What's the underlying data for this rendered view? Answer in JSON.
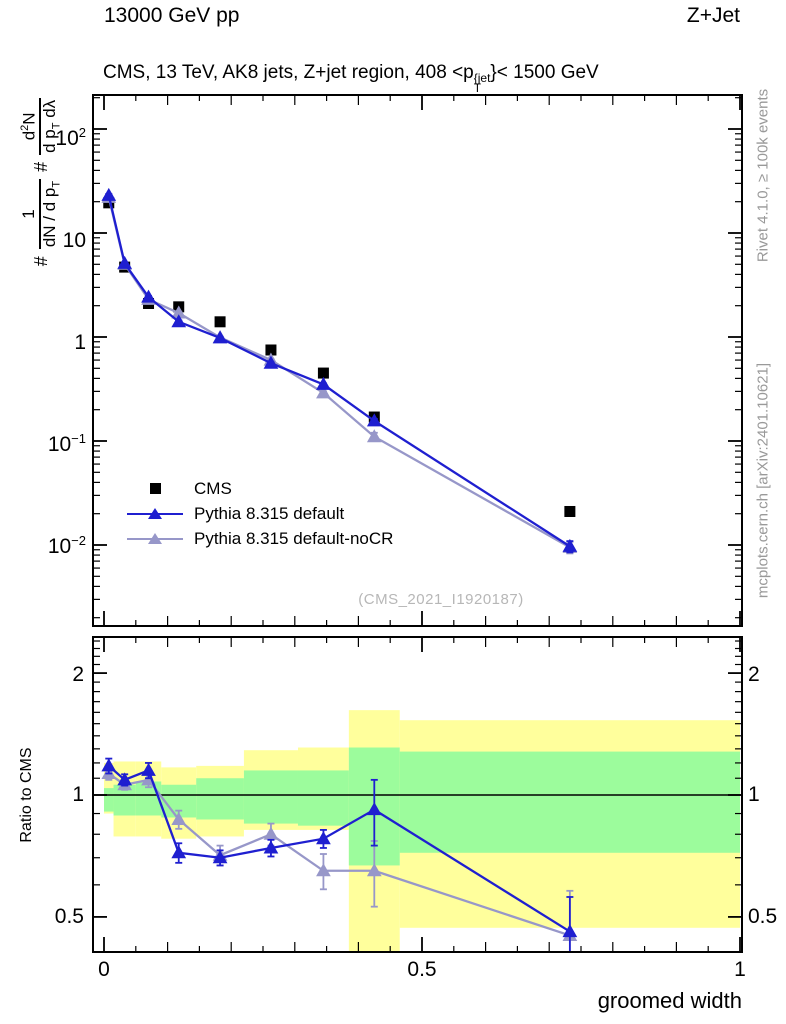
{
  "header": {
    "left": "13000 GeV pp",
    "right": "Z+Jet"
  },
  "sidebar_right": {
    "top": "Rivet 4.1.0, ≥ 100k events",
    "bottom": "mcplots.cern.ch [arXiv:2401.10621]"
  },
  "main_panel": {
    "title": {
      "prefix": "CMS, 13 TeV, AK8 jets, Z+jet region, 408 <p",
      "sup": "{jet",
      "sub": "T",
      "suffix": "}< 1500 GeV"
    },
    "ylabel": {
      "hash1": "#",
      "num1": "1",
      "den1_pre": "dN / d p",
      "den1_sub": "T",
      "hash2": "#",
      "num2_pre": "d",
      "num2_sup": "2",
      "num2_post": "N",
      "den2_pre": "d p",
      "den2_sub": "T",
      "den2_post": " dλ"
    },
    "yticks": [
      {
        "base": "10",
        "exp": "2"
      },
      {
        "base": "10",
        "exp": ""
      },
      {
        "base": "1",
        "exp": ""
      },
      {
        "base": "10",
        "exp": "−1"
      },
      {
        "base": "10",
        "exp": "−2"
      }
    ],
    "watermark": "(CMS_2021_I1920187)"
  },
  "ratio_panel": {
    "ylabel": "Ratio to CMS",
    "yticks": [
      "2",
      "1",
      "0.5"
    ]
  },
  "xaxis": {
    "label": "groomed width",
    "ticks": [
      "0",
      "0.5",
      "1"
    ]
  },
  "legend": {
    "items": [
      {
        "label": "CMS",
        "marker": "square-icon",
        "color": "#000000"
      },
      {
        "label": "Pythia 8.315 default",
        "marker": "triangle-line-icon",
        "color": "#1f1fd0"
      },
      {
        "label": "Pythia 8.315 default-noCR",
        "marker": "triangle-line-icon",
        "color": "#9797c9"
      }
    ]
  },
  "chart_data": {
    "type": "line",
    "title": "CMS, 13 TeV, AK8 jets, Z+jet region, 408 <pT{jet}< 1500 GeV",
    "xlabel": "groomed width",
    "ylabel": "# 1/(dN/dpT) d2N/(dpT dλ)",
    "ratio_ylabel": "Ratio to CMS",
    "xlim": [
      -0.0173,
      1.0
    ],
    "ylim_main": [
      0.0015,
      212
    ],
    "ylim_ratio": [
      0.41,
      2.45
    ],
    "yscale": "log",
    "ratio_yscale": "log",
    "xticks": [
      0,
      0.5,
      1
    ],
    "yticks_main": [
      100,
      10,
      1,
      0.1,
      0.01
    ],
    "yticks_ratio": [
      2,
      1,
      0.5
    ],
    "bin_edges": [
      0,
      0.015,
      0.05,
      0.09,
      0.145,
      0.22,
      0.305,
      0.385,
      0.465,
      1.0
    ],
    "x": [
      0.0075,
      0.0325,
      0.07,
      0.1175,
      0.1825,
      0.2625,
      0.345,
      0.425,
      0.7325
    ],
    "series": [
      {
        "name": "CMS",
        "color": "#000000",
        "marker": "square",
        "values": [
          19.5,
          4.7,
          2.1,
          1.95,
          1.4,
          0.75,
          0.45,
          0.17,
          0.021
        ],
        "errors": [
          0.6,
          0.15,
          0.07,
          0.06,
          0.04,
          0.025,
          0.015,
          0.008,
          0.002
        ]
      },
      {
        "name": "Pythia 8.315 default",
        "color": "#1f1fd0",
        "marker": "triangle",
        "values": [
          23,
          5.1,
          2.42,
          1.4,
          0.98,
          0.56,
          0.35,
          0.156,
          0.0097
        ],
        "errors": [
          0.7,
          0.12,
          0.06,
          0.04,
          0.02,
          0.012,
          0.008,
          0.007,
          0.0012
        ]
      },
      {
        "name": "Pythia 8.315 default-noCR",
        "color": "#9797c9",
        "marker": "triangle",
        "values": [
          22,
          5.0,
          2.3,
          1.7,
          0.99,
          0.6,
          0.29,
          0.11,
          0.0095
        ],
        "errors": [
          0.7,
          0.12,
          0.06,
          0.05,
          0.02,
          0.012,
          0.01,
          0.01,
          0.0012
        ]
      }
    ],
    "ratio": {
      "reference": 1,
      "series": [
        {
          "name": "Pythia 8.315 default",
          "color": "#1f1fd0",
          "values": [
            1.18,
            1.09,
            1.15,
            0.72,
            0.7,
            0.74,
            0.78,
            0.92,
            0.46
          ],
          "errors": [
            0.05,
            0.035,
            0.05,
            0.04,
            0.03,
            0.035,
            0.04,
            0.17,
            0.1
          ]
        },
        {
          "name": "Pythia 8.315 default-noCR",
          "color": "#9797c9",
          "values": [
            1.13,
            1.06,
            1.09,
            0.87,
            0.71,
            0.8,
            0.65,
            0.65,
            0.45
          ],
          "errors": [
            0.04,
            0.03,
            0.045,
            0.045,
            0.04,
            0.05,
            0.065,
            0.12,
            0.13
          ]
        }
      ],
      "bands": {
        "outer_color": "#ffff9c",
        "inner_color": "#9cfc9c",
        "outer": [
          [
            0.9,
            1.2
          ],
          [
            0.79,
            1.21
          ],
          [
            0.79,
            1.21
          ],
          [
            0.78,
            1.17
          ],
          [
            0.79,
            1.18
          ],
          [
            0.82,
            1.29
          ],
          [
            0.82,
            1.31
          ],
          [
            0.398,
            1.62
          ],
          [
            0.47,
            1.53
          ]
        ],
        "inner": [
          [
            0.91,
            1.04
          ],
          [
            0.89,
            1.06
          ],
          [
            0.89,
            1.08
          ],
          [
            0.88,
            1.06
          ],
          [
            0.87,
            1.1
          ],
          [
            0.85,
            1.15
          ],
          [
            0.84,
            1.15
          ],
          [
            0.67,
            1.31
          ],
          [
            0.72,
            1.28
          ]
        ]
      }
    }
  }
}
